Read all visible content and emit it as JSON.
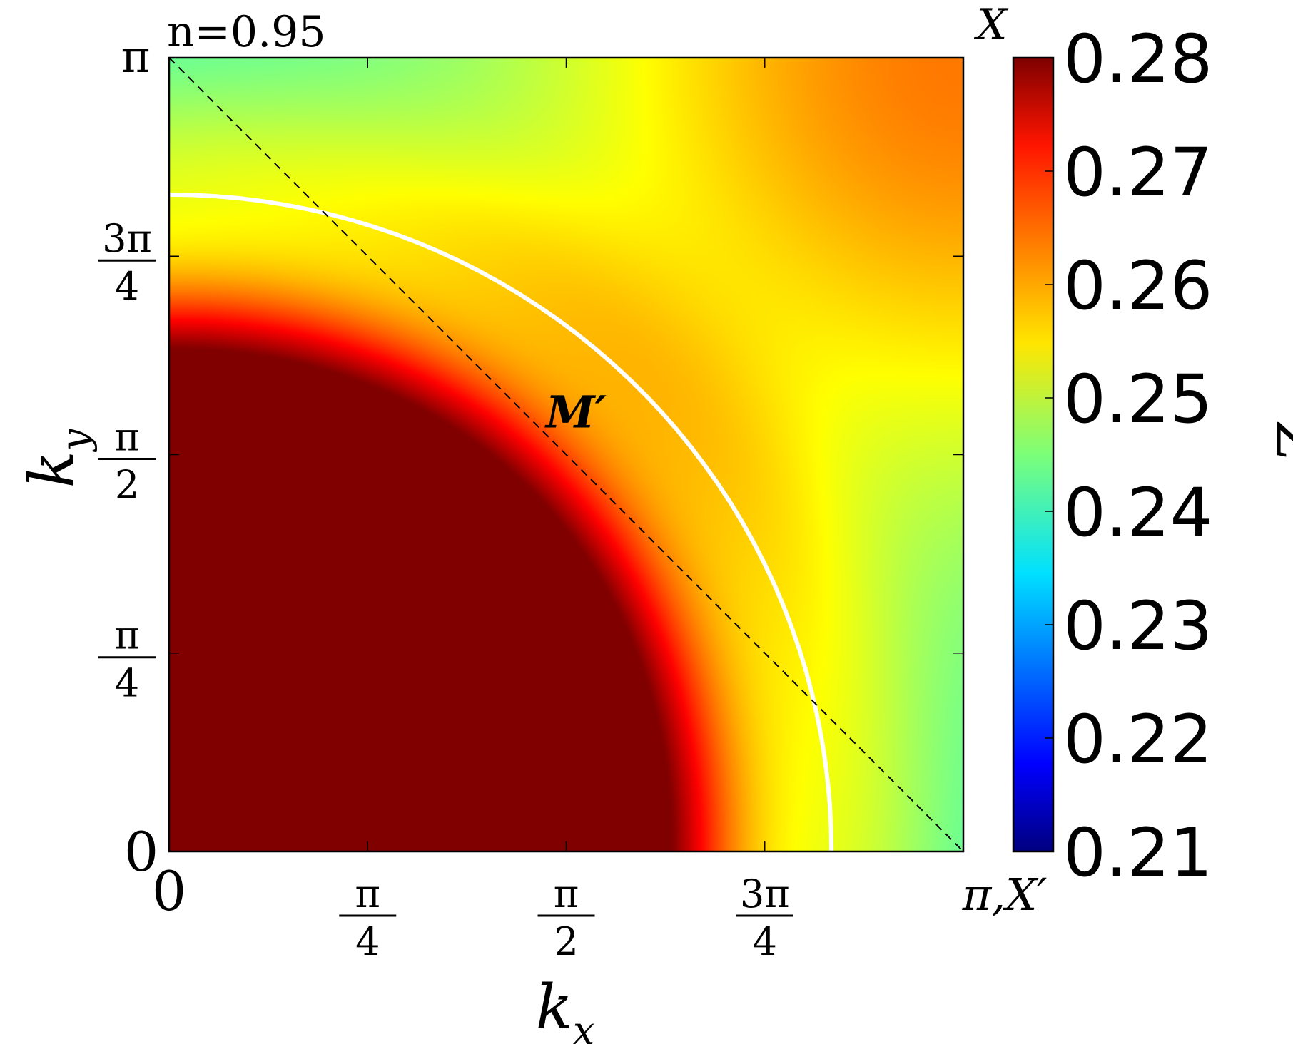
{
  "chart_data": {
    "type": "heatmap",
    "annotation": "n=0.95",
    "xlabel": "k_x",
    "ylabel": "k_y",
    "x_range": [
      0,
      3.14159
    ],
    "y_range": [
      0,
      3.14159
    ],
    "x_ticks": [
      {
        "value": 0,
        "label": "0"
      },
      {
        "value": 0.7854,
        "num": "π",
        "den": "4"
      },
      {
        "value": 1.5708,
        "num": "π",
        "den": "2"
      },
      {
        "value": 2.3562,
        "num": "3π",
        "den": "4"
      },
      {
        "value": 3.14159,
        "label": "π,X′"
      }
    ],
    "y_ticks": [
      {
        "value": 0,
        "label": "0"
      },
      {
        "value": 0.7854,
        "num": "π",
        "den": "4"
      },
      {
        "value": 1.5708,
        "num": "π",
        "den": "2"
      },
      {
        "value": 2.3562,
        "num": "3π",
        "den": "4"
      },
      {
        "value": 3.14159,
        "label": "π"
      }
    ],
    "point_labels": [
      {
        "text": "M′",
        "kx": 1.53,
        "ky": 1.74
      },
      {
        "text": "X",
        "kx": 3.14159,
        "ky": 3.14159
      }
    ],
    "fermi_surface": {
      "color": "#ffffff",
      "kx_at_ky0": 2.62,
      "ky_at_kx0": 2.6
    },
    "diagonal": {
      "from": [
        0,
        3.14159
      ],
      "to": [
        3.14159,
        0
      ],
      "style": "dashed"
    },
    "colorbar": {
      "label": "Z",
      "min": 0.21,
      "max": 0.28,
      "ticks": [
        "0.21",
        "0.22",
        "0.23",
        "0.24",
        "0.25",
        "0.26",
        "0.27",
        "0.28"
      ],
      "colormap": "jet"
    },
    "z_samples": [
      {
        "kx": 0.3,
        "ky": 0.3,
        "z": 0.28
      },
      {
        "kx": 2.0,
        "ky": 0.2,
        "z": 0.262
      },
      {
        "kx": 2.9,
        "ky": 0.2,
        "z": 0.236
      },
      {
        "kx": 0.2,
        "ky": 2.9,
        "z": 0.234
      },
      {
        "kx": 2.9,
        "ky": 2.9,
        "z": 0.272
      },
      {
        "kx": 1.8,
        "ky": 2.9,
        "z": 0.255
      },
      {
        "kx": 3.1,
        "ky": 1.6,
        "z": 0.248
      }
    ]
  }
}
